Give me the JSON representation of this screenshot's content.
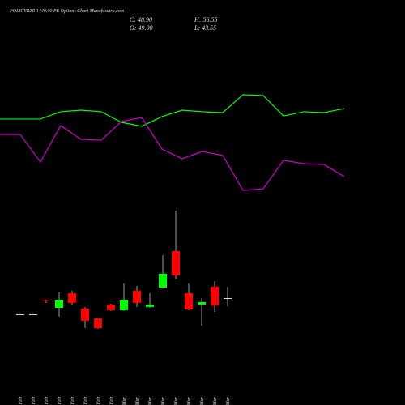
{
  "chart_data": [
    {
      "type": "candlestick",
      "title": "POLICYBZR 1440.00 PE Options Chart Munafasutra.com",
      "header": {
        "close": "C: 48.90",
        "high": "H: 56.55",
        "open": "O: 49.00",
        "low": "L: 43.55"
      },
      "categories": [
        "09 Feb",
        "11 Feb",
        "20 Feb",
        "21 Feb",
        "24 Feb",
        "25 Feb",
        "26 Feb",
        "27 Feb",
        "03 Mar",
        "04 Mar",
        "05 Mar",
        "06 Mar",
        "09 Mar",
        "10 Mar",
        "11 Mar",
        "12 Mar",
        "13 Mar"
      ],
      "open": [
        38.2,
        38.2,
        47.4,
        42.5,
        52.2,
        42.0,
        35.5,
        44.7,
        40.9,
        53.9,
        43.1,
        56.0,
        80.3,
        52.2,
        44.7,
        56.6,
        49.0
      ],
      "high": [
        38.2,
        38.2,
        47.9,
        52.8,
        53.9,
        43.1,
        35.5,
        45.2,
        58.7,
        57.1,
        52.2,
        77.6,
        107.3,
        58.7,
        49.0,
        60.3,
        56.55
      ],
      "low": [
        38.2,
        38.2,
        45.8,
        36.6,
        44.7,
        29.0,
        28.5,
        40.4,
        40.4,
        43.1,
        42.5,
        55.5,
        61.4,
        40.9,
        30.6,
        39.8,
        43.55
      ],
      "close": [
        38.2,
        38.2,
        46.8,
        47.9,
        45.8,
        33.9,
        29.0,
        40.9,
        47.9,
        45.8,
        44.7,
        65.2,
        64.1,
        41.4,
        46.3,
        44.1,
        48.9
      ],
      "up_color": "#00ff00",
      "down_color": "#ff0000",
      "flat_color": "#dddddd",
      "ylim": [
        -22.3,
        112.7
      ]
    },
    {
      "type": "line",
      "series": [
        {
          "color": "#00ff00",
          "values": [
            68.7,
            68.7,
            68.7,
            74.7,
            76,
            74.7,
            66,
            62.7,
            70.7,
            76,
            74.7,
            74,
            88.7,
            88,
            71.3,
            74.7,
            74,
            77.3
          ]
        },
        {
          "color": "#cc00cc",
          "values": [
            56,
            56,
            33.3,
            63.3,
            52,
            51.3,
            66.7,
            70,
            44,
            36,
            42,
            38.7,
            10,
            11.3,
            34.7,
            32,
            31.3,
            21.3
          ]
        }
      ],
      "ylim": [
        0,
        100
      ]
    }
  ]
}
